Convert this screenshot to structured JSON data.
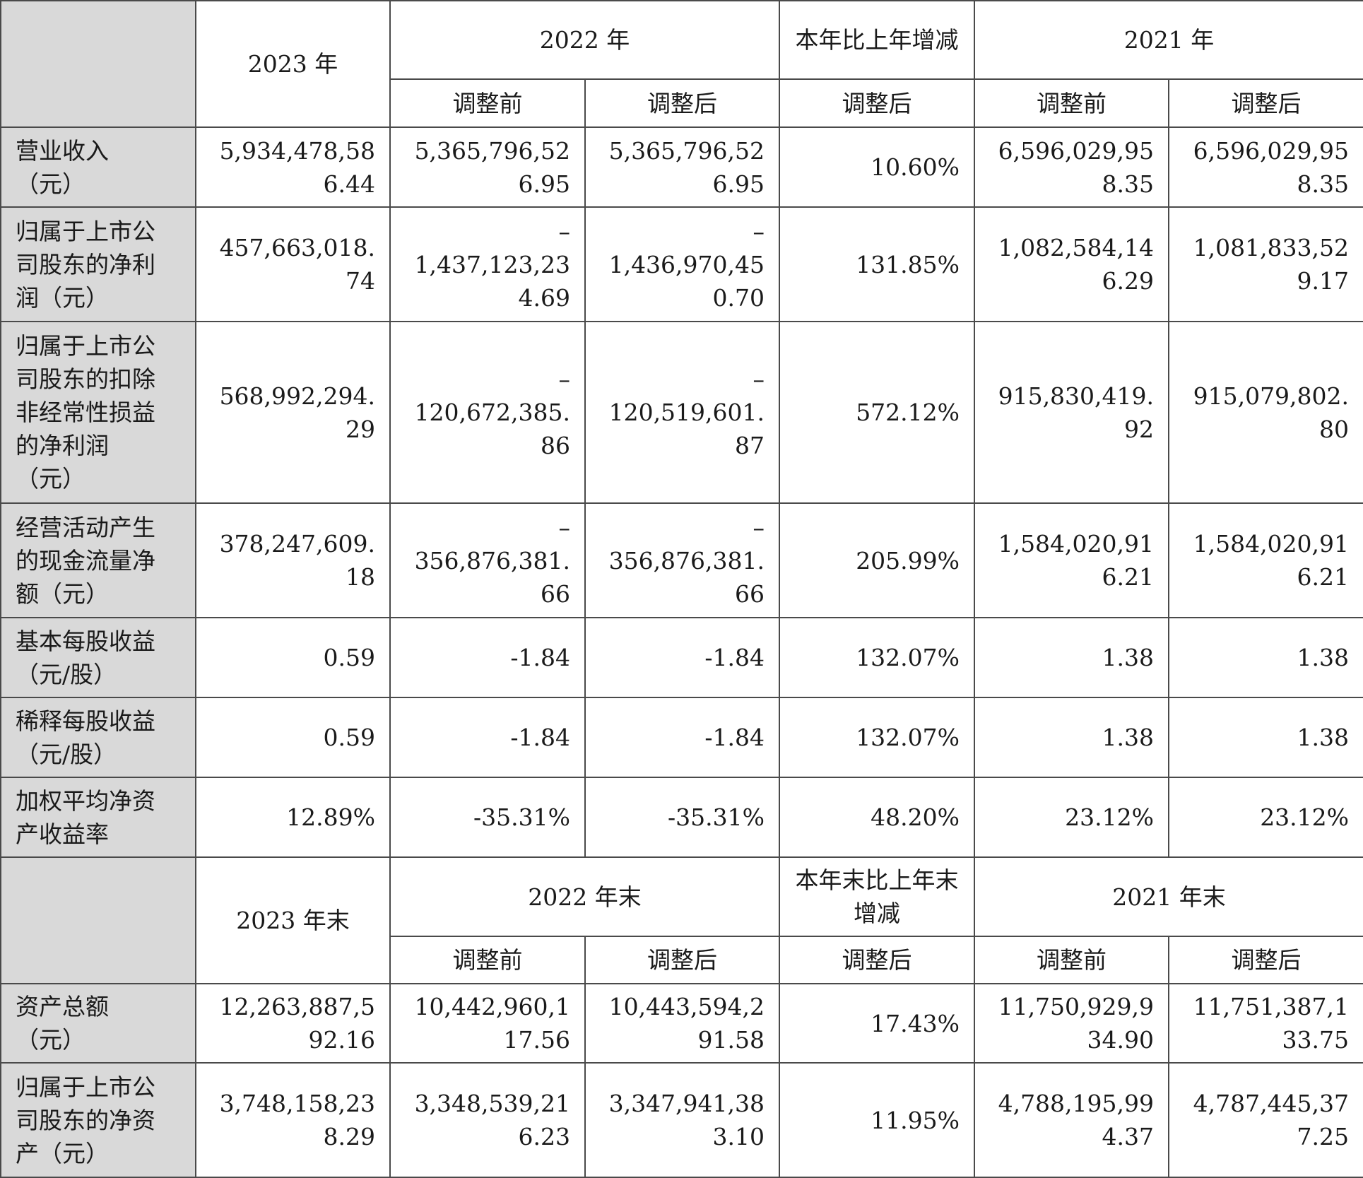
{
  "section1": {
    "header": {
      "year_2023": "2023 年",
      "year_2022": "2022 年",
      "change": "本年比上年增减",
      "year_2021": "2021 年",
      "before_adj": "调整前",
      "after_adj": "调整后"
    },
    "rows": [
      {
        "label_lines": [
          "营业收入",
          "（元）"
        ],
        "y2023": [
          "5,934,478,58",
          "6.44"
        ],
        "y2022_before": [
          "5,365,796,52",
          "6.95"
        ],
        "y2022_after": [
          "5,365,796,52",
          "6.95"
        ],
        "change": [
          "10.60%"
        ],
        "y2021_before": [
          "6,596,029,95",
          "8.35"
        ],
        "y2021_after": [
          "6,596,029,95",
          "8.35"
        ]
      },
      {
        "label_lines": [
          "归属于上市公",
          "司股东的净利",
          "润（元）"
        ],
        "y2023": [
          "457,663,018.",
          "74"
        ],
        "y2022_before": [
          "–",
          "1,437,123,23",
          "4.69"
        ],
        "y2022_after": [
          "–",
          "1,436,970,45",
          "0.70"
        ],
        "change": [
          "131.85%"
        ],
        "y2021_before": [
          "1,082,584,14",
          "6.29"
        ],
        "y2021_after": [
          "1,081,833,52",
          "9.17"
        ]
      },
      {
        "label_lines": [
          "归属于上市公",
          "司股东的扣除",
          "非经常性损益",
          "的净利润",
          "（元）"
        ],
        "y2023": [
          "568,992,294.",
          "29"
        ],
        "y2022_before": [
          "–",
          "120,672,385.",
          "86"
        ],
        "y2022_after": [
          "–",
          "120,519,601.",
          "87"
        ],
        "change": [
          "572.12%"
        ],
        "y2021_before": [
          "915,830,419.",
          "92"
        ],
        "y2021_after": [
          "915,079,802.",
          "80"
        ]
      },
      {
        "label_lines": [
          "经营活动产生",
          "的现金流量净",
          "额（元）"
        ],
        "y2023": [
          "378,247,609.",
          "18"
        ],
        "y2022_before": [
          "–",
          "356,876,381.",
          "66"
        ],
        "y2022_after": [
          "–",
          "356,876,381.",
          "66"
        ],
        "change": [
          "205.99%"
        ],
        "y2021_before": [
          "1,584,020,91",
          "6.21"
        ],
        "y2021_after": [
          "1,584,020,91",
          "6.21"
        ]
      },
      {
        "label_lines": [
          "基本每股收益",
          "（元/股）"
        ],
        "y2023": [
          "0.59"
        ],
        "y2022_before": [
          "-1.84"
        ],
        "y2022_after": [
          "-1.84"
        ],
        "change": [
          "132.07%"
        ],
        "y2021_before": [
          "1.38"
        ],
        "y2021_after": [
          "1.38"
        ]
      },
      {
        "label_lines": [
          "稀释每股收益",
          "（元/股）"
        ],
        "y2023": [
          "0.59"
        ],
        "y2022_before": [
          "-1.84"
        ],
        "y2022_after": [
          "-1.84"
        ],
        "change": [
          "132.07%"
        ],
        "y2021_before": [
          "1.38"
        ],
        "y2021_after": [
          "1.38"
        ]
      },
      {
        "label_lines": [
          "加权平均净资",
          "产收益率"
        ],
        "y2023": [
          "12.89%"
        ],
        "y2022_before": [
          "-35.31%"
        ],
        "y2022_after": [
          "-35.31%"
        ],
        "change": [
          "48.20%"
        ],
        "y2021_before": [
          "23.12%"
        ],
        "y2021_after": [
          "23.12%"
        ]
      }
    ]
  },
  "section2": {
    "header": {
      "year_2023": "2023 年末",
      "year_2022": "2022 年末",
      "change": "本年末比上年末增减",
      "year_2021": "2021 年末",
      "before_adj": "调整前",
      "after_adj": "调整后"
    },
    "rows": [
      {
        "label_lines": [
          "资产总额",
          "（元）"
        ],
        "y2023": [
          "12,263,887,5",
          "92.16"
        ],
        "y2022_before": [
          "10,442,960,1",
          "17.56"
        ],
        "y2022_after": [
          "10,443,594,2",
          "91.58"
        ],
        "change": [
          "17.43%"
        ],
        "y2021_before": [
          "11,750,929,9",
          "34.90"
        ],
        "y2021_after": [
          "11,751,387,1",
          "33.75"
        ]
      },
      {
        "label_lines": [
          "归属于上市公",
          "司股东的净资",
          "产（元）"
        ],
        "y2023": [
          "3,748,158,23",
          "8.29"
        ],
        "y2022_before": [
          "3,348,539,21",
          "6.23"
        ],
        "y2022_after": [
          "3,347,941,38",
          "3.10"
        ],
        "change": [
          "11.95%"
        ],
        "y2021_before": [
          "4,788,195,99",
          "4.37"
        ],
        "y2021_after": [
          "4,787,445,37",
          "7.25"
        ]
      }
    ]
  }
}
